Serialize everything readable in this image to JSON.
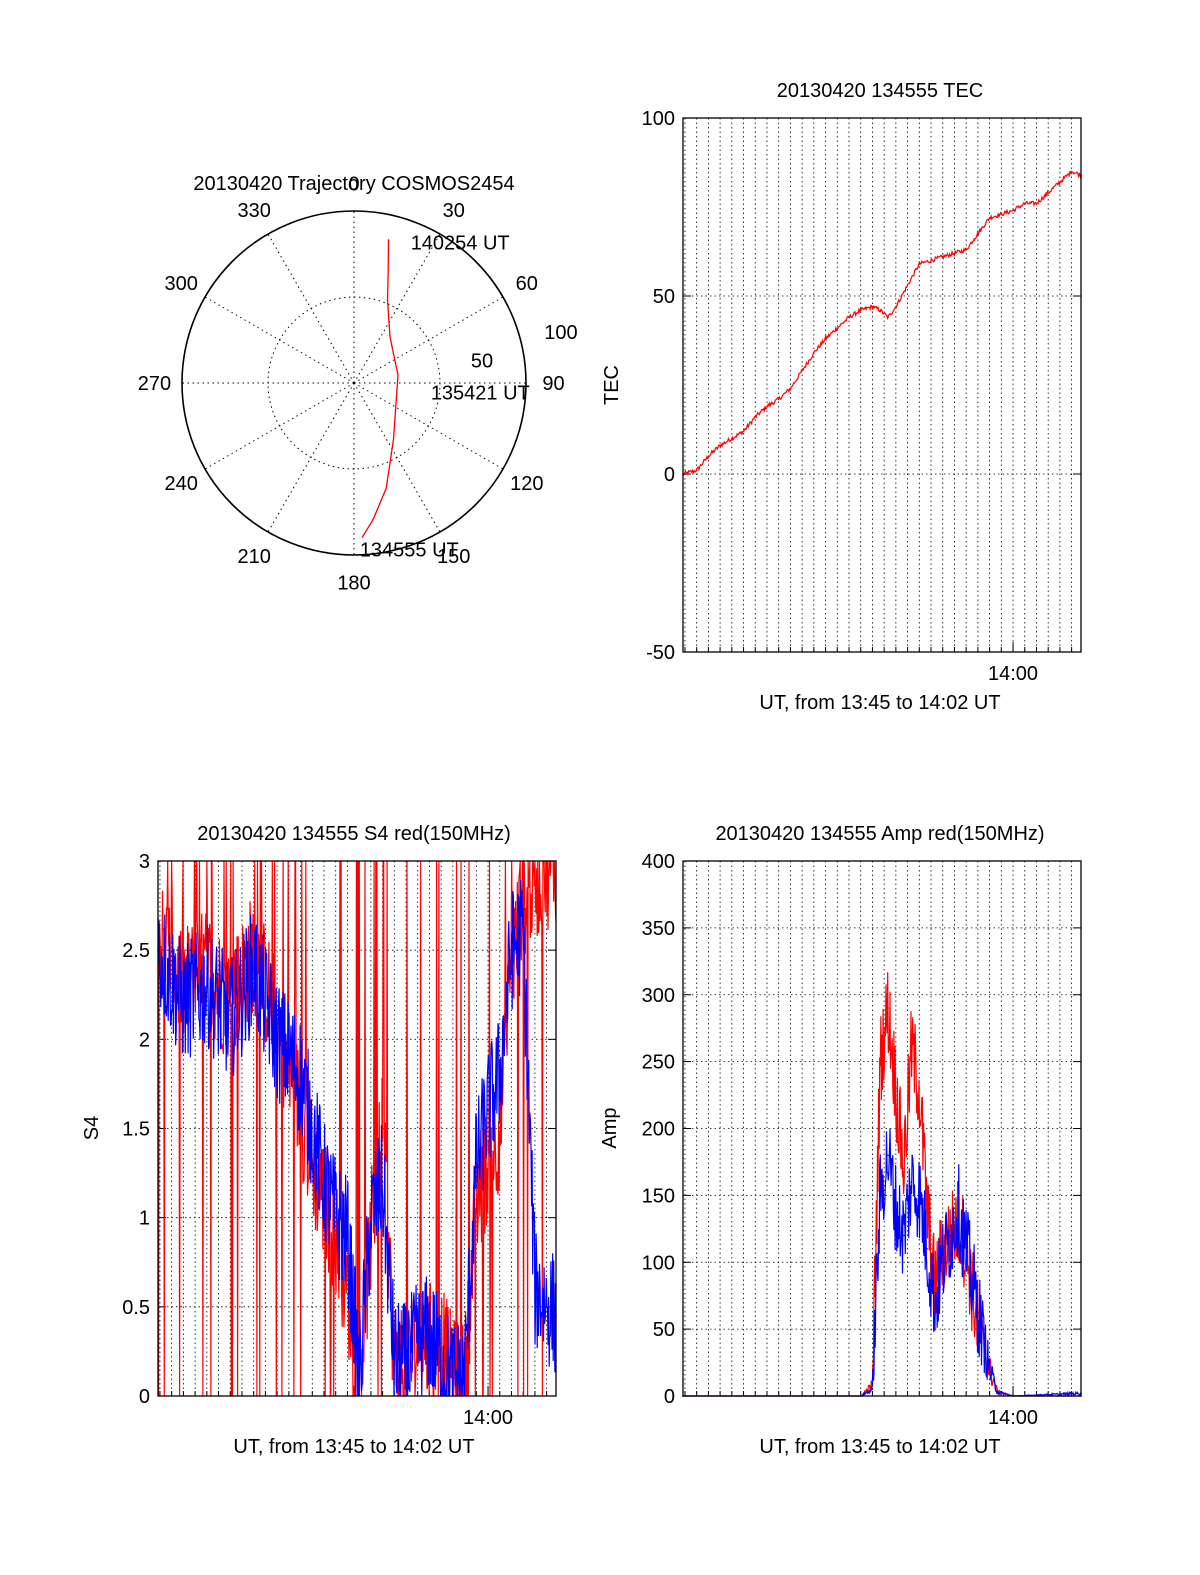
{
  "chart_data": [
    {
      "id": "polar",
      "type": "polar-trajectory",
      "title": "20130420 Trajectory COSMOS2454",
      "azimuth_ticks": [
        0,
        30,
        60,
        90,
        120,
        150,
        180,
        210,
        240,
        270,
        300,
        330
      ],
      "radial_ticks": [
        50,
        100
      ],
      "grid": true,
      "colors": {
        "track": "#ff0000",
        "frame": "#000000"
      },
      "annotations": [
        {
          "text": "140254 UT",
          "az": 22,
          "zen": 88
        },
        {
          "text": "135421 UT",
          "az": 97,
          "zen": 45
        },
        {
          "text": "134555 UT",
          "az": 178,
          "zen": 97
        }
      ],
      "track": [
        {
          "az": 13.5,
          "zen": 86
        },
        {
          "az": 17,
          "zen": 68
        },
        {
          "az": 22,
          "zen": 52
        },
        {
          "az": 38,
          "zen": 34
        },
        {
          "az": 80,
          "zen": 26
        },
        {
          "az": 145,
          "zen": 40
        },
        {
          "az": 163,
          "zen": 64
        },
        {
          "az": 172,
          "zen": 80
        },
        {
          "az": 177,
          "zen": 90
        }
      ]
    },
    {
      "id": "tec",
      "type": "line",
      "title": "20130420 134555 TEC",
      "xlabel": "UT, from 13:45 to 14:02 UT",
      "ylabel": "TEC",
      "xlim": [
        "13:45:55",
        "14:02:54"
      ],
      "ylim": [
        -50,
        100
      ],
      "yticks": [
        -50,
        0,
        50,
        100
      ],
      "xticks": [
        {
          "label": "14:00",
          "value": "14:00:00"
        }
      ],
      "grid": true,
      "series": [
        {
          "color": "#ff0000",
          "x": [
            "13:45:55",
            "13:46:30",
            "13:47:00",
            "13:47:30",
            "13:48:00",
            "13:48:30",
            "13:49:00",
            "13:49:30",
            "13:50:00",
            "13:50:30",
            "13:51:00",
            "13:51:30",
            "13:52:00",
            "13:52:30",
            "13:53:00",
            "13:53:30",
            "13:54:00",
            "13:54:20",
            "13:54:40",
            "13:55:00",
            "13:56:00",
            "13:57:00",
            "13:58:00",
            "13:58:20",
            "13:59:00",
            "13:59:30",
            "14:00:00",
            "14:00:30",
            "14:01:00",
            "14:01:30",
            "14:02:00",
            "14:02:30",
            "14:02:54"
          ],
          "y": [
            0,
            1,
            5,
            8,
            10,
            12,
            16,
            19,
            21,
            24,
            29,
            34,
            38,
            41,
            44,
            46,
            47,
            46,
            44,
            47,
            59,
            61,
            63,
            66,
            72,
            73,
            74,
            76,
            76,
            79,
            82,
            85,
            84
          ]
        }
      ]
    },
    {
      "id": "s4",
      "type": "line",
      "title": "20130420 134555 S4 red(150MHz)",
      "xlabel": "UT, from 13:45 to 14:02 UT",
      "ylabel": "S4",
      "xlim": [
        "13:45:55",
        "14:02:54"
      ],
      "ylim": [
        0,
        3
      ],
      "yticks": [
        0,
        0.5,
        1,
        1.5,
        2,
        2.5,
        3
      ],
      "xticks": [
        {
          "label": "14:00",
          "value": "14:00:00"
        }
      ],
      "grid": true,
      "series": [
        {
          "color": "#ff0000",
          "x": [
            "13:45:55",
            "13:47:00",
            "13:48:00",
            "13:49:00",
            "13:50:00",
            "13:51:00",
            "13:52:00",
            "13:52:30",
            "13:53:00",
            "13:53:30",
            "13:54:00",
            "13:54:30",
            "13:55:00",
            "13:55:30",
            "13:56:00",
            "13:56:30",
            "13:57:00",
            "13:57:30",
            "13:58:00",
            "13:58:30",
            "13:59:00",
            "13:59:30",
            "14:00:00",
            "14:00:30",
            "14:01:00",
            "14:01:30",
            "14:02:00",
            "14:02:54"
          ],
          "y": [
            2.6,
            2.3,
            2.4,
            2.2,
            2.5,
            2.1,
            1.6,
            1.3,
            1.1,
            0.9,
            0.6,
            0.08,
            0.9,
            1.5,
            0.2,
            0.15,
            0.35,
            0.3,
            0.3,
            0.1,
            0.07,
            1.1,
            1.3,
            1.5,
            2.4,
            2.8,
            2.9,
            3.0
          ]
        },
        {
          "color": "#0000ff",
          "x": [
            "13:45:55",
            "13:47:00",
            "13:48:00",
            "13:49:00",
            "13:50:00",
            "13:51:00",
            "13:52:00",
            "13:52:30",
            "13:53:00",
            "13:53:30",
            "13:54:00",
            "13:54:30",
            "13:55:00",
            "13:55:30",
            "13:56:00",
            "13:56:30",
            "13:57:00",
            "13:57:30",
            "13:58:00",
            "13:58:30",
            "13:59:00",
            "13:59:30",
            "14:00:00",
            "14:00:30",
            "14:01:00",
            "14:01:30",
            "14:02:00",
            "14:02:54"
          ],
          "y": [
            2.5,
            2.2,
            2.3,
            2.1,
            2.4,
            2.0,
            1.8,
            1.5,
            1.2,
            1.0,
            0.9,
            0.1,
            1.0,
            1.2,
            0.2,
            0.18,
            0.3,
            0.35,
            0.2,
            0.1,
            0.1,
            1.3,
            1.6,
            1.8,
            2.5,
            2.6,
            0.6,
            0.45
          ]
        }
      ]
    },
    {
      "id": "amp",
      "type": "line",
      "title": "20130420 134555 Amp red(150MHz)",
      "xlabel": "UT, from 13:45 to 14:02 UT",
      "ylabel": "Amp",
      "xlim": [
        "13:45:55",
        "14:02:54"
      ],
      "ylim": [
        0,
        400
      ],
      "yticks": [
        0,
        50,
        100,
        150,
        200,
        250,
        300,
        350,
        400
      ],
      "xticks": [
        {
          "label": "14:00",
          "value": "14:00:00"
        }
      ],
      "grid": true,
      "series": [
        {
          "color": "#ff0000",
          "x": [
            "13:45:55",
            "13:53:30",
            "13:54:00",
            "13:54:20",
            "13:54:40",
            "13:55:00",
            "13:55:20",
            "13:55:40",
            "13:56:00",
            "13:56:20",
            "13:56:40",
            "13:57:00",
            "13:57:20",
            "13:57:40",
            "13:58:00",
            "13:58:20",
            "13:58:40",
            "13:59:00",
            "13:59:20",
            "14:00:00",
            "14:02:54"
          ],
          "y": [
            0,
            0,
            8,
            250,
            290,
            230,
            170,
            260,
            230,
            140,
            80,
            110,
            120,
            130,
            110,
            70,
            40,
            20,
            3,
            0,
            0
          ]
        },
        {
          "color": "#0000ff",
          "x": [
            "13:45:55",
            "13:53:30",
            "13:54:00",
            "13:54:20",
            "13:54:40",
            "13:55:00",
            "13:55:20",
            "13:55:40",
            "13:56:00",
            "13:56:20",
            "13:56:40",
            "13:57:00",
            "13:57:20",
            "13:57:40",
            "13:58:00",
            "13:58:20",
            "13:58:40",
            "13:59:00",
            "13:59:20",
            "14:00:00",
            "14:02:54"
          ],
          "y": [
            0,
            0,
            5,
            150,
            180,
            140,
            120,
            160,
            150,
            110,
            70,
            100,
            120,
            140,
            110,
            80,
            50,
            20,
            3,
            0,
            2
          ]
        }
      ]
    }
  ]
}
